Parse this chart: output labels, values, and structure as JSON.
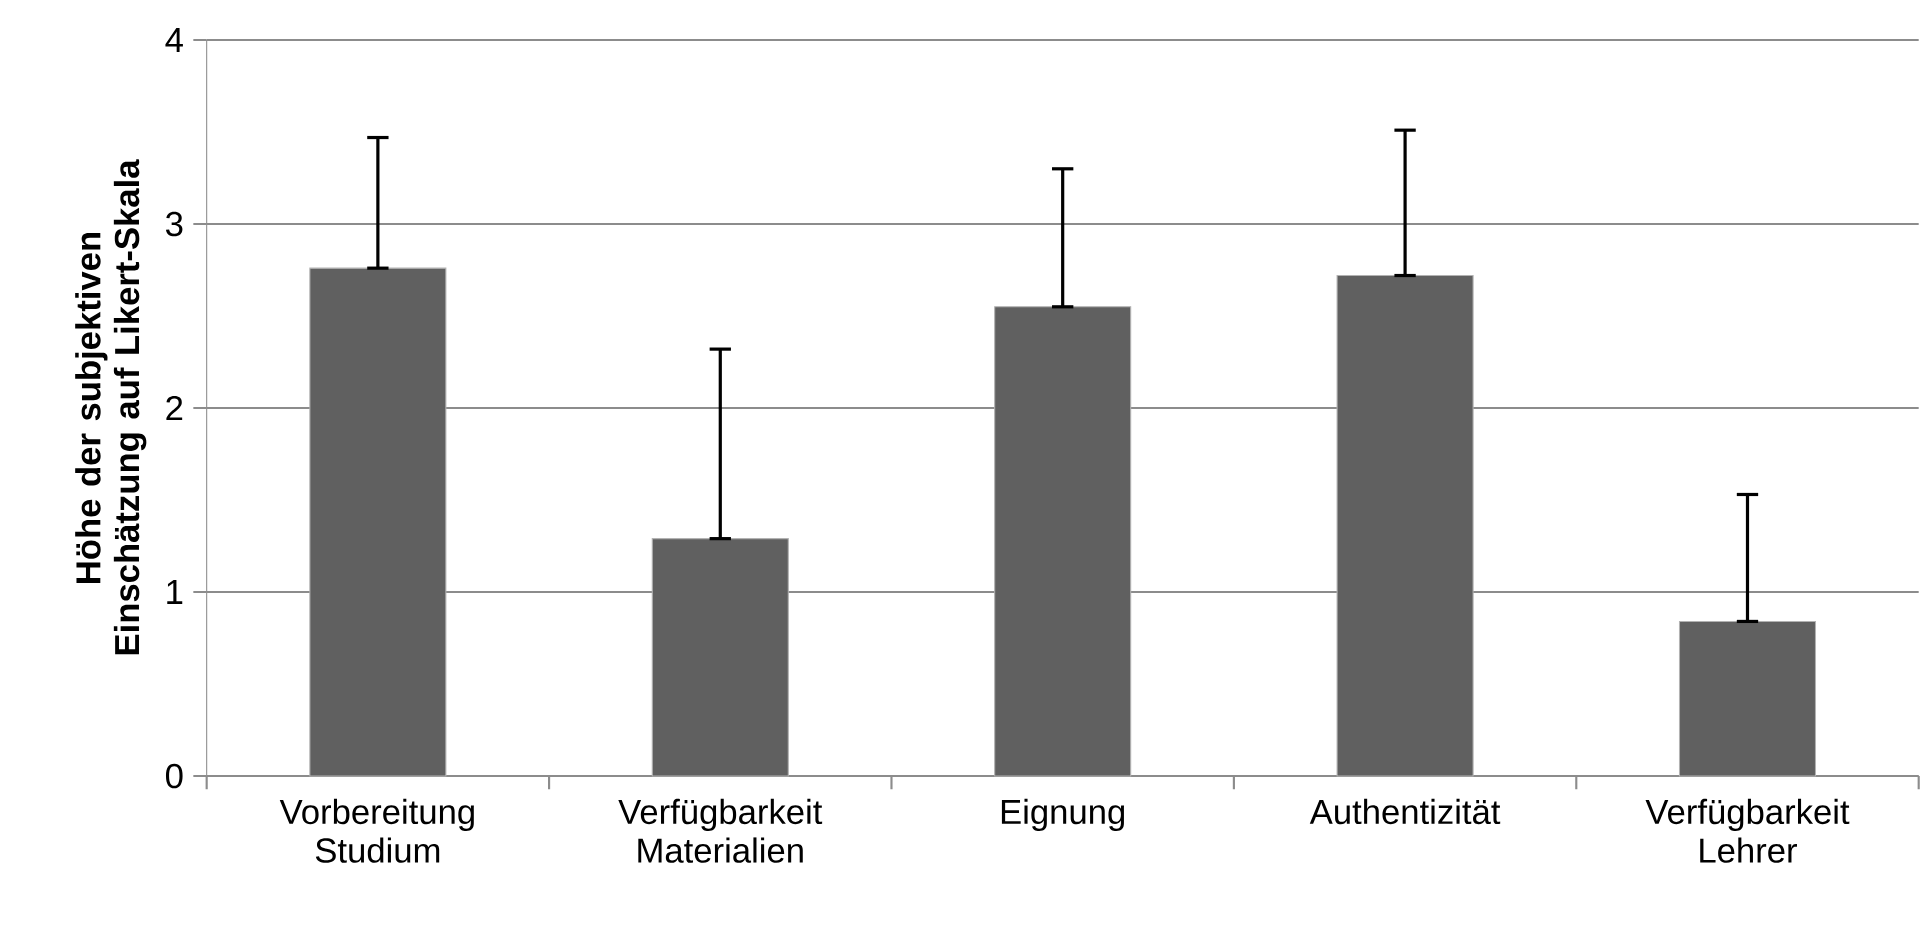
{
  "chart_data": {
    "type": "bar",
    "ylabel": "Höhe der subjektiven Einschätzung auf Likert-Skala",
    "categories": [
      "Vorbereitung Studium",
      "Verfügbarkeit Materialien",
      "Eignung",
      "Authentizität",
      "Verfügbarkeit Lehrer"
    ],
    "values": [
      2.76,
      1.29,
      2.55,
      2.72,
      0.84
    ],
    "errors": [
      [
        2.76,
        3.47
      ],
      [
        1.29,
        2.32
      ],
      [
        2.55,
        3.3
      ],
      [
        2.72,
        3.51
      ],
      [
        0.84,
        1.53
      ]
    ],
    "color": "#606060",
    "ylim": [
      0,
      4
    ],
    "yticks": [
      0,
      1,
      2,
      3,
      4
    ],
    "grid": "y"
  }
}
